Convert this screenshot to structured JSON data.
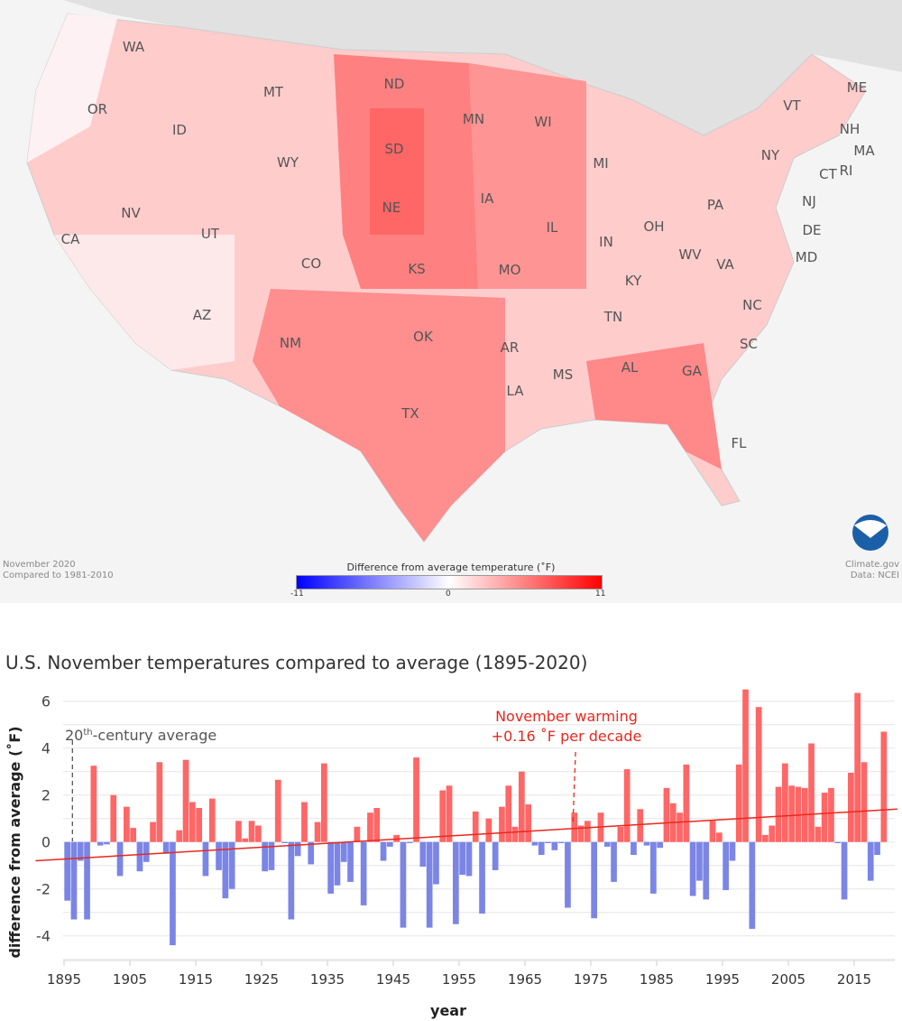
{
  "map": {
    "caption_left": [
      "November 2020",
      "Compared to 1981-2010"
    ],
    "caption_right": [
      "Climate.gov",
      "Data: NCEI"
    ],
    "legend_title": "Difference from average temperature (˚F)",
    "legend_ticks": [
      "-11",
      "0",
      "11"
    ],
    "legend_colors": {
      "min": "#0000ff",
      "mid": "#ffffff",
      "max": "#ff0000"
    },
    "logo": "noaa-logo",
    "state_labels": [
      "WA",
      "OR",
      "ID",
      "MT",
      "ND",
      "SD",
      "WY",
      "NE",
      "MN",
      "WI",
      "MI",
      "IA",
      "IL",
      "IN",
      "OH",
      "PA",
      "NY",
      "VT",
      "ME",
      "NH",
      "MA",
      "RI",
      "CT",
      "NJ",
      "DE",
      "MD",
      "WV",
      "VA",
      "KY",
      "NC",
      "TN",
      "SC",
      "GA",
      "AL",
      "MS",
      "LA",
      "AR",
      "OK",
      "TX",
      "NM",
      "AZ",
      "CO",
      "KS",
      "MO",
      "UT",
      "NV",
      "CA",
      "FL"
    ]
  },
  "chart_data": {
    "type": "bar",
    "title": "U.S. November temperatures compared to average (1895-2020)",
    "xlabel": "year",
    "ylabel": "difference from average (˚F)",
    "ylim": [
      -5,
      6.5
    ],
    "yticks": [
      6,
      4,
      2,
      0,
      -2,
      -4
    ],
    "xticks": [
      1895,
      1905,
      1915,
      1925,
      1935,
      1945,
      1955,
      1965,
      1975,
      1985,
      1995,
      2005,
      2015
    ],
    "grid": true,
    "positive_color": "#ff6666",
    "negative_color": "#7b85e6",
    "trend_color": "#e8281e",
    "x_start": 1895,
    "values": [
      -2.5,
      -3.3,
      -0.8,
      -3.3,
      3.25,
      -0.15,
      -0.1,
      2.0,
      -1.45,
      1.5,
      0.6,
      -1.25,
      -0.85,
      0.85,
      3.4,
      -0.5,
      -4.4,
      0.5,
      3.5,
      1.7,
      1.45,
      -1.45,
      1.85,
      -1.2,
      -2.4,
      -2.0,
      0.9,
      0.15,
      0.9,
      0.7,
      -1.25,
      -1.2,
      2.65,
      -0.05,
      -3.3,
      -0.6,
      1.7,
      -0.95,
      0.85,
      3.35,
      -2.2,
      -1.85,
      -0.85,
      -1.7,
      0.65,
      -2.7,
      1.25,
      1.45,
      -0.8,
      -0.2,
      0.3,
      -3.65,
      -0.05,
      3.6,
      -1.05,
      -3.65,
      -1.8,
      2.2,
      2.4,
      -3.5,
      -1.4,
      -1.45,
      1.3,
      -3.05,
      1.0,
      -1.2,
      1.5,
      2.4,
      0.65,
      3.0,
      1.6,
      -0.15,
      -0.55,
      -0.05,
      -0.35,
      -0.05,
      -2.8,
      1.25,
      0.7,
      0.9,
      -3.25,
      1.25,
      -0.2,
      -1.7,
      0.65,
      3.1,
      -0.55,
      1.4,
      -0.15,
      -2.2,
      -0.25,
      2.3,
      1.65,
      1.25,
      3.3,
      -2.3,
      -1.65,
      -2.45,
      0.9,
      0.4,
      -2.05,
      -0.8,
      3.3,
      6.5,
      -3.7,
      5.75,
      0.3,
      0.7,
      2.35,
      3.35,
      2.4,
      2.35,
      2.3,
      4.2,
      0.65,
      2.1,
      2.3,
      -0.05,
      -2.45,
      2.95,
      6.35,
      3.4,
      -1.65,
      -0.55,
      4.7
    ],
    "trend": {
      "rate_per_decade": 0.16,
      "start": [
        1890,
        -0.8
      ],
      "end": [
        2021,
        1.4
      ]
    },
    "annotations": [
      {
        "text": "20th-century average",
        "superscript": "th",
        "prefix": "20",
        "suffix": "-century average",
        "year": 1896,
        "color": "#555555"
      },
      {
        "text": "November warming",
        "line2": "+0.16 ˚F per decade",
        "year": 1972,
        "color": "#e8281e"
      }
    ]
  }
}
